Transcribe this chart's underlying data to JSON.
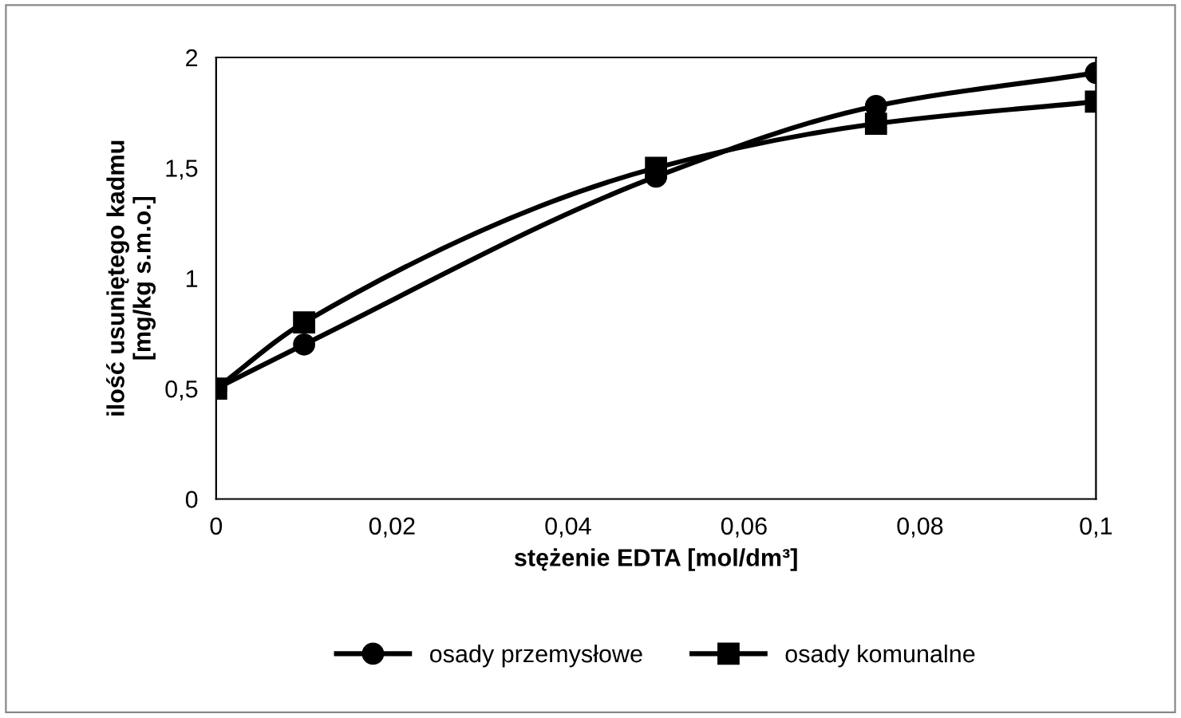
{
  "chart_data": {
    "type": "line",
    "xlabel": "stężenie EDTA [mol/dm³]",
    "ylabel": "ilość usuniętego kadmu\n[mg/kg s.m.o.]",
    "x": [
      0,
      0.01,
      0.05,
      0.075,
      0.1
    ],
    "series": [
      {
        "name": "osady przemysłowe",
        "color": "#000000",
        "marker": "circle",
        "values": [
          0.5,
          0.7,
          1.46,
          1.78,
          1.93
        ]
      },
      {
        "name": "osady komunalne",
        "color": "#000000",
        "marker": "square",
        "values": [
          0.5,
          0.8,
          1.5,
          1.7,
          1.8
        ]
      }
    ],
    "xlim": [
      0,
      0.1
    ],
    "xticks": [
      {
        "value": 0,
        "label": "0"
      },
      {
        "value": 0.02,
        "label": "0,02"
      },
      {
        "value": 0.04,
        "label": "0,04"
      },
      {
        "value": 0.06,
        "label": "0,06"
      },
      {
        "value": 0.08,
        "label": "0,08"
      },
      {
        "value": 0.1,
        "label": "0,1"
      }
    ],
    "ylim": [
      0,
      2
    ],
    "yticks": [
      {
        "value": 0,
        "label": "0"
      },
      {
        "value": 0.5,
        "label": "0,5"
      },
      {
        "value": 1,
        "label": "1"
      },
      {
        "value": 1.5,
        "label": "1,5"
      },
      {
        "value": 2,
        "label": "2"
      }
    ],
    "grid": false,
    "legend": "bottom",
    "line_style": "solid"
  }
}
